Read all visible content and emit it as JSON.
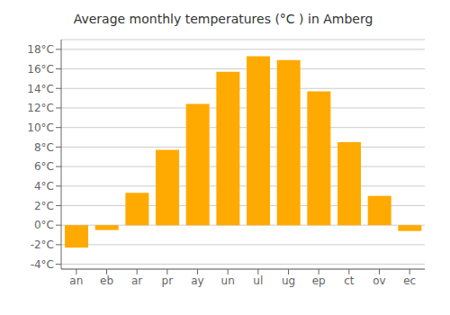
{
  "chart_data": {
    "type": "bar",
    "title": "Average monthly temperatures (°C ) in Amberg",
    "categories": [
      "an",
      "eb",
      "ar",
      "pr",
      "ay",
      "un",
      "ul",
      "ug",
      "ep",
      "ct",
      "ov",
      "ec"
    ],
    "values": [
      -2.3,
      -0.5,
      3.3,
      7.7,
      12.4,
      15.7,
      17.3,
      16.9,
      13.7,
      8.5,
      3.0,
      -0.6
    ],
    "color": "#FFAA00",
    "ylim": [
      -4.5,
      19
    ],
    "yticks": [
      {
        "value": -4,
        "label": "-4°C"
      },
      {
        "value": -2,
        "label": "-2°C"
      },
      {
        "value": 0,
        "label": "0°C"
      },
      {
        "value": 2,
        "label": "2°C"
      },
      {
        "value": 4,
        "label": "4°C"
      },
      {
        "value": 6,
        "label": "6°C"
      },
      {
        "value": 8,
        "label": "8°C"
      },
      {
        "value": 10,
        "label": "10°C"
      },
      {
        "value": 12,
        "label": "12°C"
      },
      {
        "value": 14,
        "label": "14°C"
      },
      {
        "value": 16,
        "label": "16°C"
      },
      {
        "value": 18,
        "label": "18°C"
      }
    ],
    "grid": true
  }
}
